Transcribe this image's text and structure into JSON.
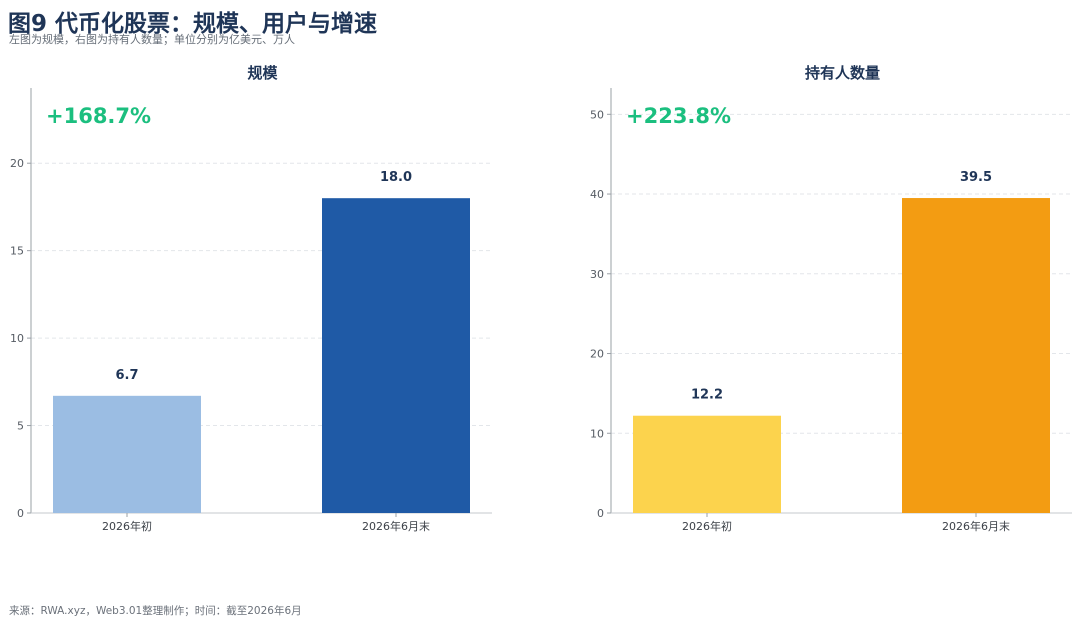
{
  "header": {
    "title": "图9 代币化股票：规模、用户与增速",
    "subtitle": "左图为规模，右图为持有人数量；单位分别为亿美元、万人"
  },
  "footer": {
    "source": "来源：RWA.xyz，Web3.01整理制作；时间：截至2026年6月"
  },
  "chart_data": [
    {
      "type": "bar",
      "title": "规模",
      "categories": [
        "2026年初",
        "2026年6月末"
      ],
      "values": [
        6.7,
        18.0
      ],
      "value_labels": [
        "6.7",
        "18.0"
      ],
      "ylim": [
        0,
        24.3
      ],
      "yticks": [
        0,
        5,
        10,
        15,
        20
      ],
      "annotation": "+168.7%",
      "annotation_color": "#1bbf7f",
      "bar_colors": [
        "#9bbde3",
        "#1f5aa6"
      ],
      "grid": "horizontal dashed"
    },
    {
      "type": "bar",
      "title": "持有人数量",
      "categories": [
        "2026年初",
        "2026年6月末"
      ],
      "values": [
        12.2,
        39.5
      ],
      "value_labels": [
        "12.2",
        "39.5"
      ],
      "ylim": [
        0,
        53.3
      ],
      "yticks": [
        0,
        10,
        20,
        30,
        40,
        50
      ],
      "annotation": "+223.8%",
      "annotation_color": "#1bbf7f",
      "bar_colors": [
        "#fcd34d",
        "#f39c12"
      ],
      "grid": "horizontal dashed"
    }
  ]
}
